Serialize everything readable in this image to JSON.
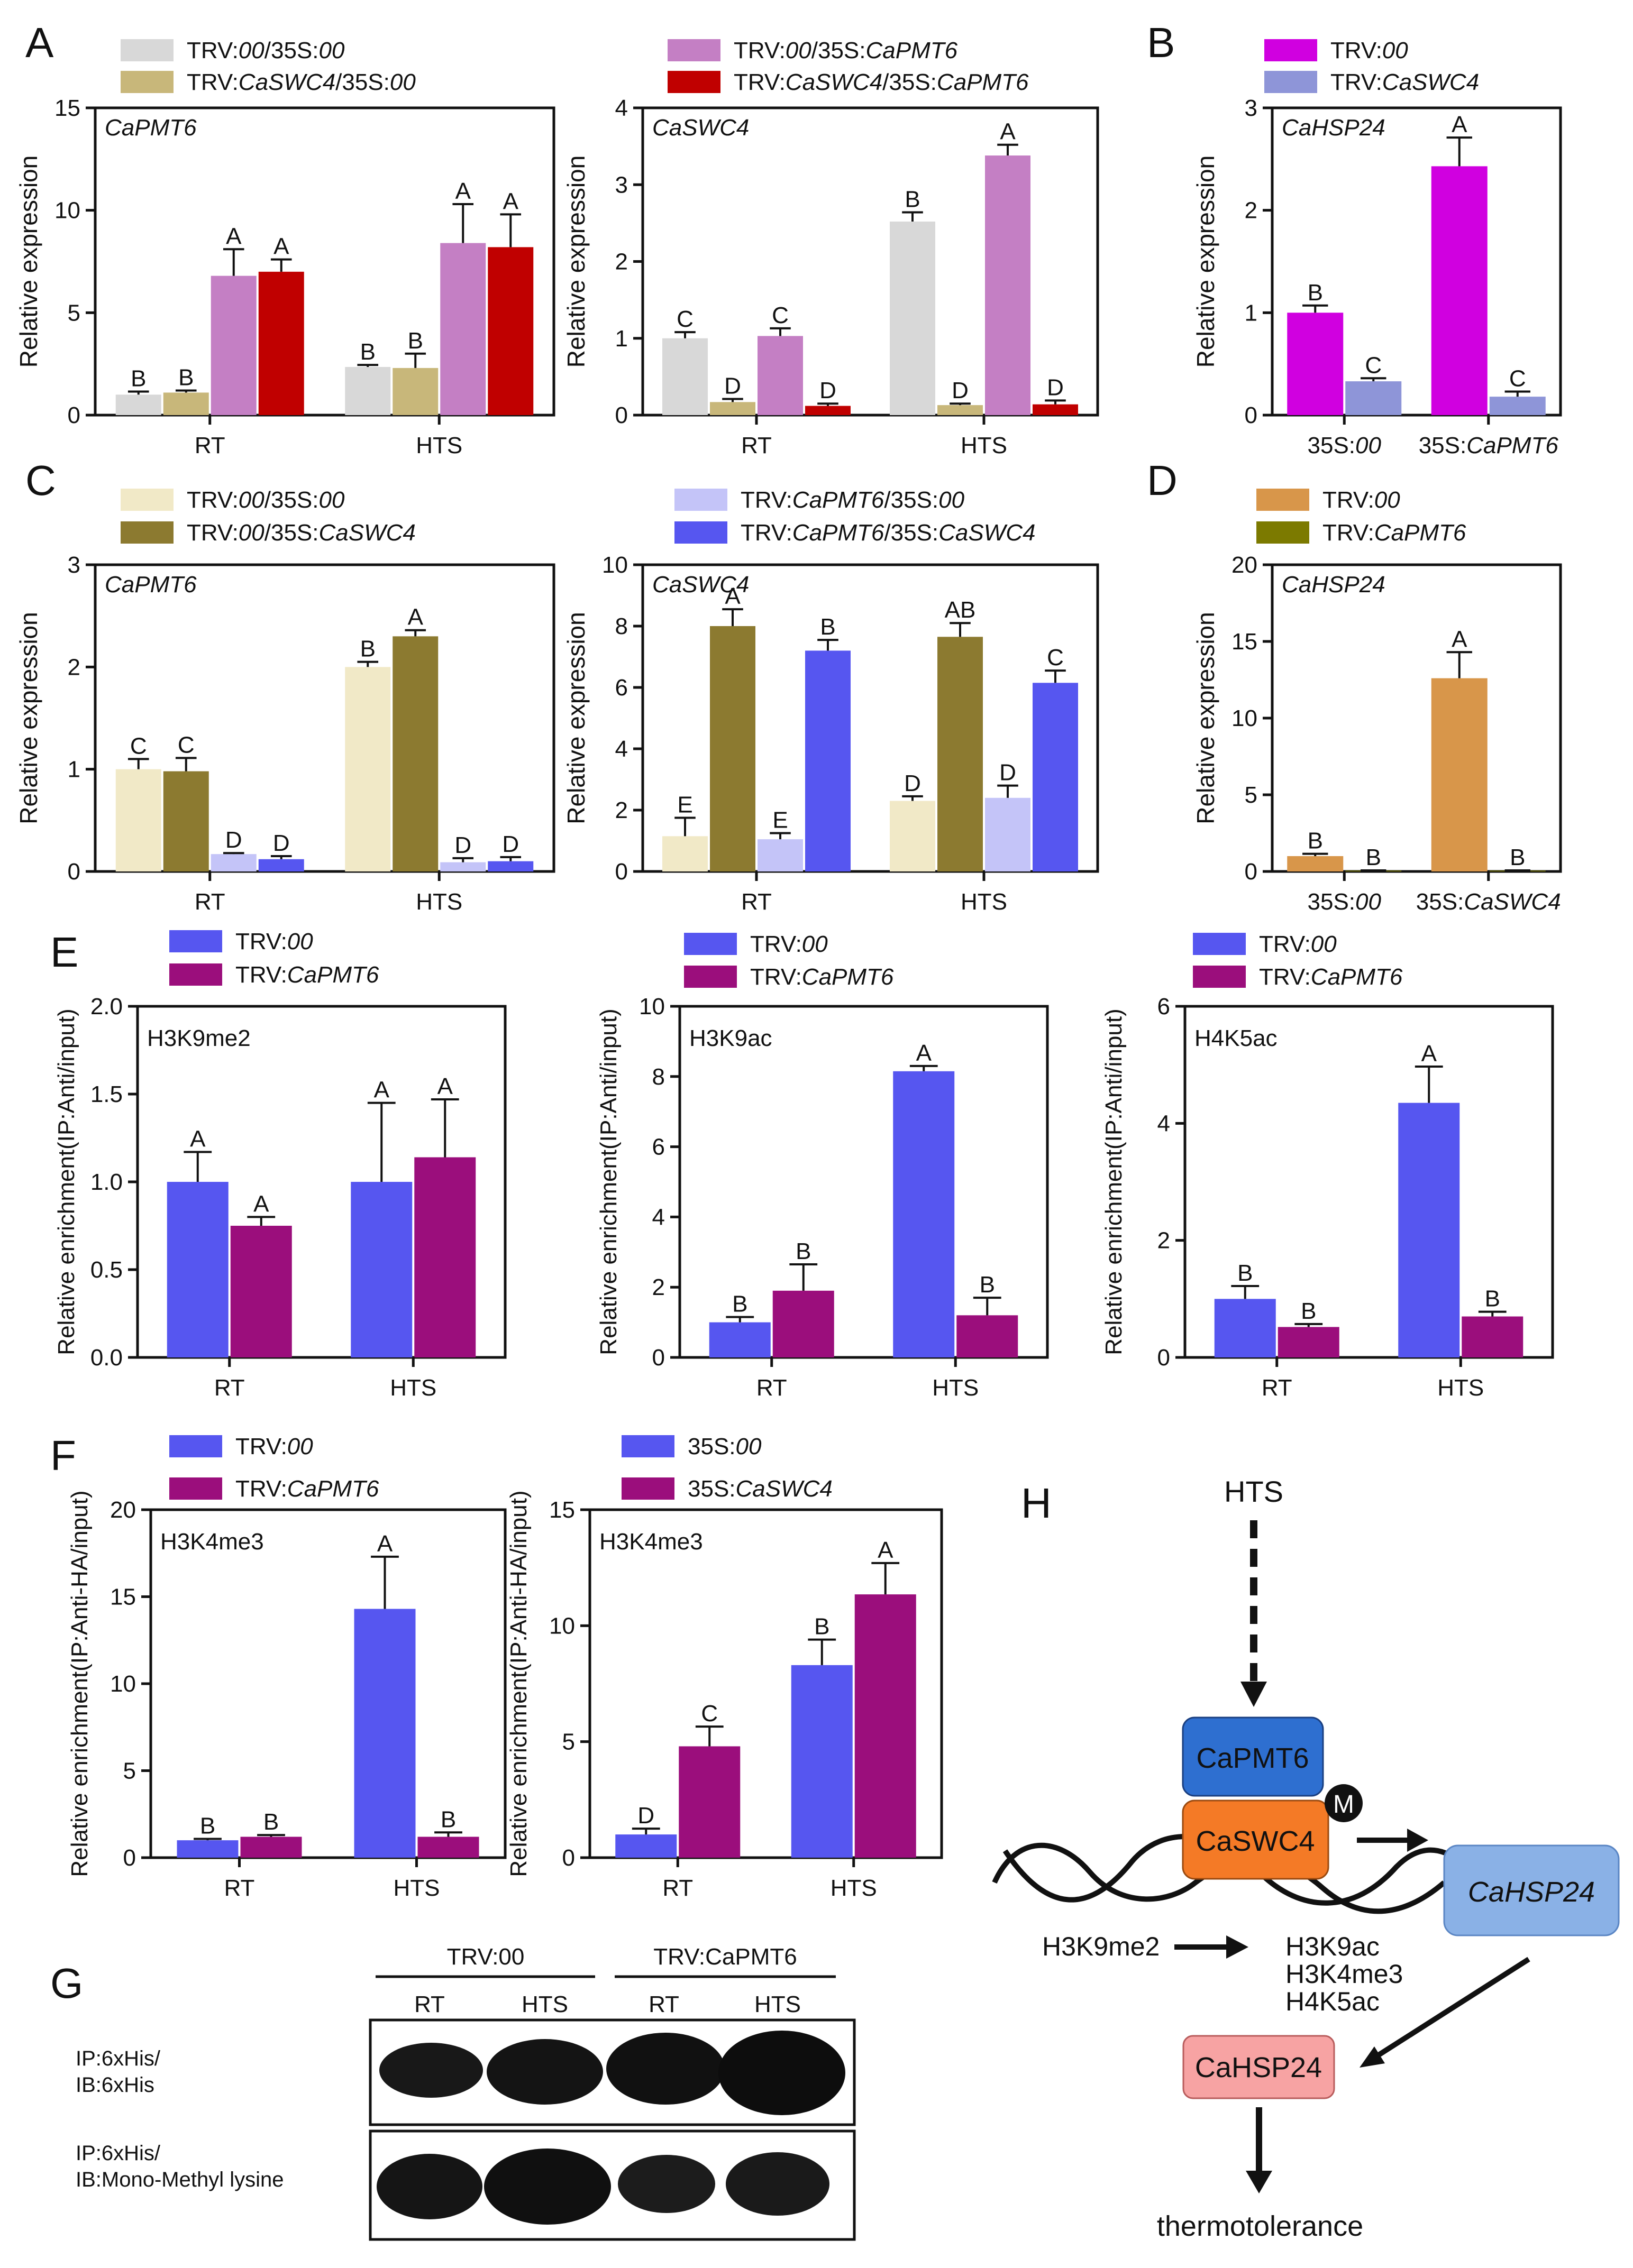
{
  "panel_letters": {
    "A": "A",
    "B": "B",
    "C": "C",
    "D": "D",
    "E": "E",
    "F": "F",
    "G": "G",
    "H": "H"
  },
  "colors": {
    "grey": "#D8D8D8",
    "khaki": "#C8B77A",
    "orchid": "#C47FC4",
    "red": "#C00000",
    "magenta": "#D000E0",
    "lavender": "#8E95D8",
    "cream": "#F1E9C7",
    "olive": "#8C7A30",
    "lightblue": "#C4C4F8",
    "blue": "#5656F0",
    "orange": "#D8964A",
    "darkolive": "#7C7A00",
    "purple": "#9B0E7C",
    "hbox_pmt6": "#2E6FD0",
    "hbox_swc4": "#F47A26",
    "hbox_hsp": "#8AB1E6",
    "hbox_hsp2": "#F7A3A3"
  },
  "chart_data": [
    {
      "id": "A1",
      "panel": "A",
      "type": "bar",
      "inner_label": "CaPMT6",
      "ylabel": "Relative expression",
      "ylim": [
        0,
        15
      ],
      "yticks": [
        0,
        5,
        10,
        15
      ],
      "categories": [
        "RT",
        "HTS"
      ],
      "series": [
        {
          "name": "TRV:00/35S:00",
          "name_parts": [
            [
              "TRV:",
              0
            ],
            [
              "00",
              1
            ],
            [
              "/35S:",
              0
            ],
            [
              "00",
              1
            ]
          ],
          "color": "grey",
          "values": [
            1.0,
            2.35
          ],
          "errors": [
            0.15,
            0.1
          ],
          "letters": [
            "B",
            "B"
          ]
        },
        {
          "name": "TRV:CaSWC4/35S:00",
          "name_parts": [
            [
              "TRV:",
              0
            ],
            [
              "CaSWC4",
              1
            ],
            [
              "/35S:",
              0
            ],
            [
              "00",
              1
            ]
          ],
          "color": "khaki",
          "values": [
            1.1,
            2.3
          ],
          "errors": [
            0.1,
            0.7
          ],
          "letters": [
            "B",
            "B"
          ]
        },
        {
          "name": "TRV:00/35S:CaPMT6",
          "name_parts": [
            [
              "TRV:",
              0
            ],
            [
              "00",
              1
            ],
            [
              "/35S:",
              0
            ],
            [
              "CaPMT6",
              1
            ]
          ],
          "color": "orchid",
          "values": [
            6.8,
            8.4
          ],
          "errors": [
            1.3,
            1.9
          ],
          "letters": [
            "A",
            "A"
          ]
        },
        {
          "name": "TRV:CaSWC4/35S:CaPMT6",
          "name_parts": [
            [
              "TRV:",
              0
            ],
            [
              "CaSWC4",
              1
            ],
            [
              "/35S:",
              0
            ],
            [
              "CaPMT6",
              1
            ]
          ],
          "color": "red",
          "values": [
            7.0,
            8.2
          ],
          "errors": [
            0.6,
            1.6
          ],
          "letters": [
            "A",
            "A"
          ]
        }
      ]
    },
    {
      "id": "A2",
      "panel": "A",
      "type": "bar",
      "inner_label": "CaSWC4",
      "ylabel": "Relative expression",
      "ylim": [
        0,
        4
      ],
      "yticks": [
        0,
        1,
        2,
        3,
        4
      ],
      "categories": [
        "RT",
        "HTS"
      ],
      "series": [
        {
          "name": "TRV:00/35S:00",
          "color": "grey",
          "values": [
            1.0,
            2.52
          ],
          "errors": [
            0.08,
            0.12
          ],
          "letters": [
            "C",
            "B"
          ]
        },
        {
          "name": "TRV:CaSWC4/35S:00",
          "color": "khaki",
          "values": [
            0.17,
            0.13
          ],
          "errors": [
            0.04,
            0.02
          ],
          "letters": [
            "D",
            "D"
          ]
        },
        {
          "name": "TRV:00/35S:CaPMT6",
          "color": "orchid",
          "values": [
            1.03,
            3.38
          ],
          "errors": [
            0.1,
            0.14
          ],
          "letters": [
            "C",
            "A"
          ]
        },
        {
          "name": "TRV:CaSWC4/35S:CaPMT6",
          "color": "red",
          "values": [
            0.12,
            0.14
          ],
          "errors": [
            0.03,
            0.05
          ],
          "letters": [
            "D",
            "D"
          ]
        }
      ]
    },
    {
      "id": "B",
      "panel": "B",
      "type": "bar",
      "inner_label": "CaHSP24",
      "ylabel": "Relative expression",
      "ylim": [
        0,
        3
      ],
      "yticks": [
        0,
        1,
        2,
        3
      ],
      "categories": [
        "35S:00",
        "35S:CaPMT6"
      ],
      "series": [
        {
          "name": "TRV:00",
          "name_parts": [
            [
              "TRV:",
              0
            ],
            [
              "00",
              1
            ]
          ],
          "color": "magenta",
          "values": [
            1.0,
            2.43
          ],
          "errors": [
            0.07,
            0.28
          ],
          "letters": [
            "B",
            "A"
          ]
        },
        {
          "name": "TRV:CaSWC4",
          "name_parts": [
            [
              "TRV:",
              0
            ],
            [
              "CaSWC4",
              1
            ]
          ],
          "color": "lavender",
          "values": [
            0.33,
            0.18
          ],
          "errors": [
            0.03,
            0.05
          ],
          "letters": [
            "C",
            "C"
          ]
        }
      ]
    },
    {
      "id": "C1",
      "panel": "C",
      "type": "bar",
      "inner_label": "CaPMT6",
      "ylabel": "Relative expression",
      "ylim": [
        0,
        3
      ],
      "yticks": [
        0,
        1,
        2,
        3
      ],
      "categories": [
        "RT",
        "HTS"
      ],
      "series": [
        {
          "name": "TRV:00/35S:00",
          "name_parts": [
            [
              "TRV:",
              0
            ],
            [
              "00",
              1
            ],
            [
              "/35S:",
              0
            ],
            [
              "00",
              1
            ]
          ],
          "color": "cream",
          "values": [
            1.0,
            2.0
          ],
          "errors": [
            0.1,
            0.05
          ],
          "letters": [
            "C",
            "B"
          ]
        },
        {
          "name": "TRV:00/35S:CaSWC4",
          "name_parts": [
            [
              "TRV:",
              0
            ],
            [
              "00",
              1
            ],
            [
              "/35S:",
              0
            ],
            [
              "CaSWC4",
              1
            ]
          ],
          "color": "olive",
          "values": [
            0.98,
            2.3
          ],
          "errors": [
            0.13,
            0.06
          ],
          "letters": [
            "C",
            "A"
          ]
        },
        {
          "name": "TRV:CaPMT6/35S:00",
          "name_parts": [
            [
              "TRV:",
              0
            ],
            [
              "CaPMT6",
              1
            ],
            [
              "/35S:",
              0
            ],
            [
              "00",
              1
            ]
          ],
          "color": "lightblue",
          "values": [
            0.17,
            0.09
          ],
          "errors": [
            0.01,
            0.04
          ],
          "letters": [
            "D",
            "D"
          ]
        },
        {
          "name": "TRV:CaPMT6/35S:CaSWC4",
          "name_parts": [
            [
              "TRV:",
              0
            ],
            [
              "CaPMT6",
              1
            ],
            [
              "/35S:",
              0
            ],
            [
              "CaSWC4",
              1
            ]
          ],
          "color": "blue",
          "values": [
            0.12,
            0.1
          ],
          "errors": [
            0.03,
            0.04
          ],
          "letters": [
            "D",
            "D"
          ]
        }
      ]
    },
    {
      "id": "C2",
      "panel": "C",
      "type": "bar",
      "inner_label": "CaSWC4",
      "ylabel": "Relative expression",
      "ylim": [
        0,
        10
      ],
      "yticks": [
        0,
        2,
        4,
        6,
        8,
        10
      ],
      "categories": [
        "RT",
        "HTS"
      ],
      "series": [
        {
          "name": "TRV:00/35S:00",
          "color": "cream",
          "values": [
            1.15,
            2.3
          ],
          "errors": [
            0.6,
            0.15
          ],
          "letters": [
            "E",
            "D"
          ]
        },
        {
          "name": "TRV:00/35S:CaSWC4",
          "color": "olive",
          "values": [
            8.0,
            7.65
          ],
          "errors": [
            0.55,
            0.45
          ],
          "letters": [
            "A",
            "AB"
          ]
        },
        {
          "name": "TRV:CaPMT6/35S:00",
          "color": "lightblue",
          "values": [
            1.05,
            2.4
          ],
          "errors": [
            0.2,
            0.4
          ],
          "letters": [
            "E",
            "D"
          ]
        },
        {
          "name": "TRV:CaPMT6/35S:CaSWC4",
          "color": "blue",
          "values": [
            7.2,
            6.15
          ],
          "errors": [
            0.35,
            0.4
          ],
          "letters": [
            "B",
            "C"
          ]
        }
      ]
    },
    {
      "id": "D",
      "panel": "D",
      "type": "bar",
      "inner_label": "CaHSP24",
      "ylabel": "Relative expression",
      "ylim": [
        0,
        20
      ],
      "yticks": [
        0,
        5,
        10,
        15,
        20
      ],
      "categories": [
        "35S:00",
        "35S:CaSWC4"
      ],
      "series": [
        {
          "name": "TRV:00",
          "name_parts": [
            [
              "TRV:",
              0
            ],
            [
              "00",
              1
            ]
          ],
          "color": "orange",
          "values": [
            1.0,
            12.6
          ],
          "errors": [
            0.15,
            1.7
          ],
          "letters": [
            "B",
            "A"
          ]
        },
        {
          "name": "TRV:CaPMT6",
          "name_parts": [
            [
              "TRV:",
              0
            ],
            [
              "CaPMT6",
              1
            ]
          ],
          "color": "darkolive",
          "values": [
            0.05,
            0.05
          ],
          "errors": [
            0.02,
            0.02
          ],
          "letters": [
            "B",
            "B"
          ]
        }
      ]
    },
    {
      "id": "E1",
      "panel": "E",
      "type": "bar",
      "inner_label": "H3K9me2",
      "ylabel": "Relative enrichment(IP:Anti/input)",
      "ylim": [
        0,
        2.0
      ],
      "yticks": [
        0.0,
        0.5,
        1.0,
        1.5,
        2.0
      ],
      "tick_decimals": 1,
      "categories": [
        "RT",
        "HTS"
      ],
      "series": [
        {
          "name": "TRV:00",
          "color": "blue",
          "values": [
            1.0,
            1.0
          ],
          "errors": [
            0.17,
            0.45
          ],
          "letters": [
            "A",
            "A"
          ]
        },
        {
          "name": "TRV:CaPMT6",
          "color": "purple",
          "values": [
            0.75,
            1.14
          ],
          "errors": [
            0.05,
            0.33
          ],
          "letters": [
            "A",
            "A"
          ]
        }
      ]
    },
    {
      "id": "E2",
      "panel": "E",
      "type": "bar",
      "inner_label": "H3K9ac",
      "ylabel": "Relative enrichment(IP:Anti/input)",
      "ylim": [
        0,
        10
      ],
      "yticks": [
        0,
        2,
        4,
        6,
        8,
        10
      ],
      "categories": [
        "RT",
        "HTS"
      ],
      "series": [
        {
          "name": "TRV:00",
          "color": "blue",
          "values": [
            1.0,
            8.15
          ],
          "errors": [
            0.15,
            0.15
          ],
          "letters": [
            "B",
            "A"
          ]
        },
        {
          "name": "TRV:CaPMT6",
          "color": "purple",
          "values": [
            1.9,
            1.2
          ],
          "errors": [
            0.75,
            0.5
          ],
          "letters": [
            "B",
            "B"
          ]
        }
      ]
    },
    {
      "id": "E3",
      "panel": "E",
      "type": "bar",
      "inner_label": "H4K5ac",
      "ylabel": "Relative enrichment(IP:Anti/input)",
      "ylim": [
        0,
        6
      ],
      "yticks": [
        0,
        2,
        4,
        6
      ],
      "categories": [
        "RT",
        "HTS"
      ],
      "series": [
        {
          "name": "TRV:00",
          "color": "blue",
          "values": [
            1.0,
            4.35
          ],
          "errors": [
            0.22,
            0.62
          ],
          "letters": [
            "B",
            "A"
          ]
        },
        {
          "name": "TRV:CaPMT6",
          "color": "purple",
          "values": [
            0.52,
            0.7
          ],
          "errors": [
            0.05,
            0.08
          ],
          "letters": [
            "B",
            "B"
          ]
        }
      ]
    },
    {
      "id": "F1",
      "panel": "F",
      "type": "bar",
      "inner_label": "H3K4me3",
      "ylabel": "Relative enrichment(IP:Anti-HA/input)",
      "ylim": [
        0,
        20
      ],
      "yticks": [
        0,
        5,
        10,
        15,
        20
      ],
      "categories": [
        "RT",
        "HTS"
      ],
      "series": [
        {
          "name": "TRV:00",
          "color": "blue",
          "values": [
            1.0,
            14.3
          ],
          "errors": [
            0.08,
            3.0
          ],
          "letters": [
            "B",
            "A"
          ]
        },
        {
          "name": "TRV:CaPMT6",
          "color": "purple",
          "values": [
            1.2,
            1.2
          ],
          "errors": [
            0.1,
            0.25
          ],
          "letters": [
            "B",
            "B"
          ]
        }
      ]
    },
    {
      "id": "F2",
      "panel": "F",
      "type": "bar",
      "inner_label": "H3K4me3",
      "ylabel": "Relative enrichment(IP:Anti-HA/input)",
      "ylim": [
        0,
        15
      ],
      "yticks": [
        0,
        5,
        10,
        15
      ],
      "categories": [
        "RT",
        "HTS"
      ],
      "series": [
        {
          "name": "35S:00",
          "name_parts": [
            [
              "35S:",
              0
            ],
            [
              "00",
              1
            ]
          ],
          "color": "blue",
          "values": [
            1.0,
            8.3
          ],
          "errors": [
            0.25,
            1.1
          ],
          "letters": [
            "D",
            "B"
          ]
        },
        {
          "name": "35S:CaSWC4",
          "name_parts": [
            [
              "35S:",
              0
            ],
            [
              "CaSWC4",
              1
            ]
          ],
          "color": "purple",
          "values": [
            4.8,
            11.35
          ],
          "errors": [
            0.85,
            1.35
          ],
          "letters": [
            "C",
            "A"
          ]
        }
      ]
    }
  ],
  "blot": {
    "group_labels": [
      "TRV:00",
      "TRV:CaPMT6"
    ],
    "lane_labels": [
      "RT",
      "HTS",
      "RT",
      "HTS"
    ],
    "row1_label": [
      "IP:6xHis/",
      "IB:6xHis"
    ],
    "row2_label": [
      "IP:6xHis/",
      "IB:Mono-Methyl lysine"
    ]
  },
  "model": {
    "signal": "HTS",
    "pmt6": "CaPMT6",
    "swc4": "CaSWC4",
    "methyl": "M",
    "hsp_gene": "CaHSP24",
    "mark_from": "H3K9me2",
    "marks_to": [
      "H3K9ac",
      "H3K4me3",
      "H4K5ac"
    ],
    "hsp_protein": "CaHSP24",
    "outcome": "thermotolerance"
  }
}
